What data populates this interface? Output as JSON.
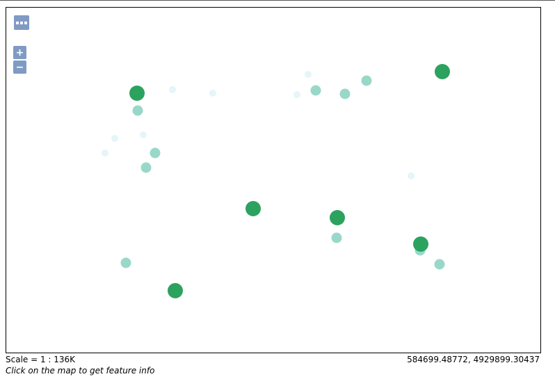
{
  "controls": {
    "menu_icon": "ellipsis-icon",
    "zoom_in_label": "+",
    "zoom_out_label": "−"
  },
  "status": {
    "scale": "Scale = 1 : 136K",
    "coordinates": "584699.48772, 4929899.30437",
    "hint": "Click on the map to get feature info"
  },
  "legend_colors": {
    "high": "#2ca25f",
    "medium": "#99d8c9",
    "low": "#e5f5f9"
  }
}
